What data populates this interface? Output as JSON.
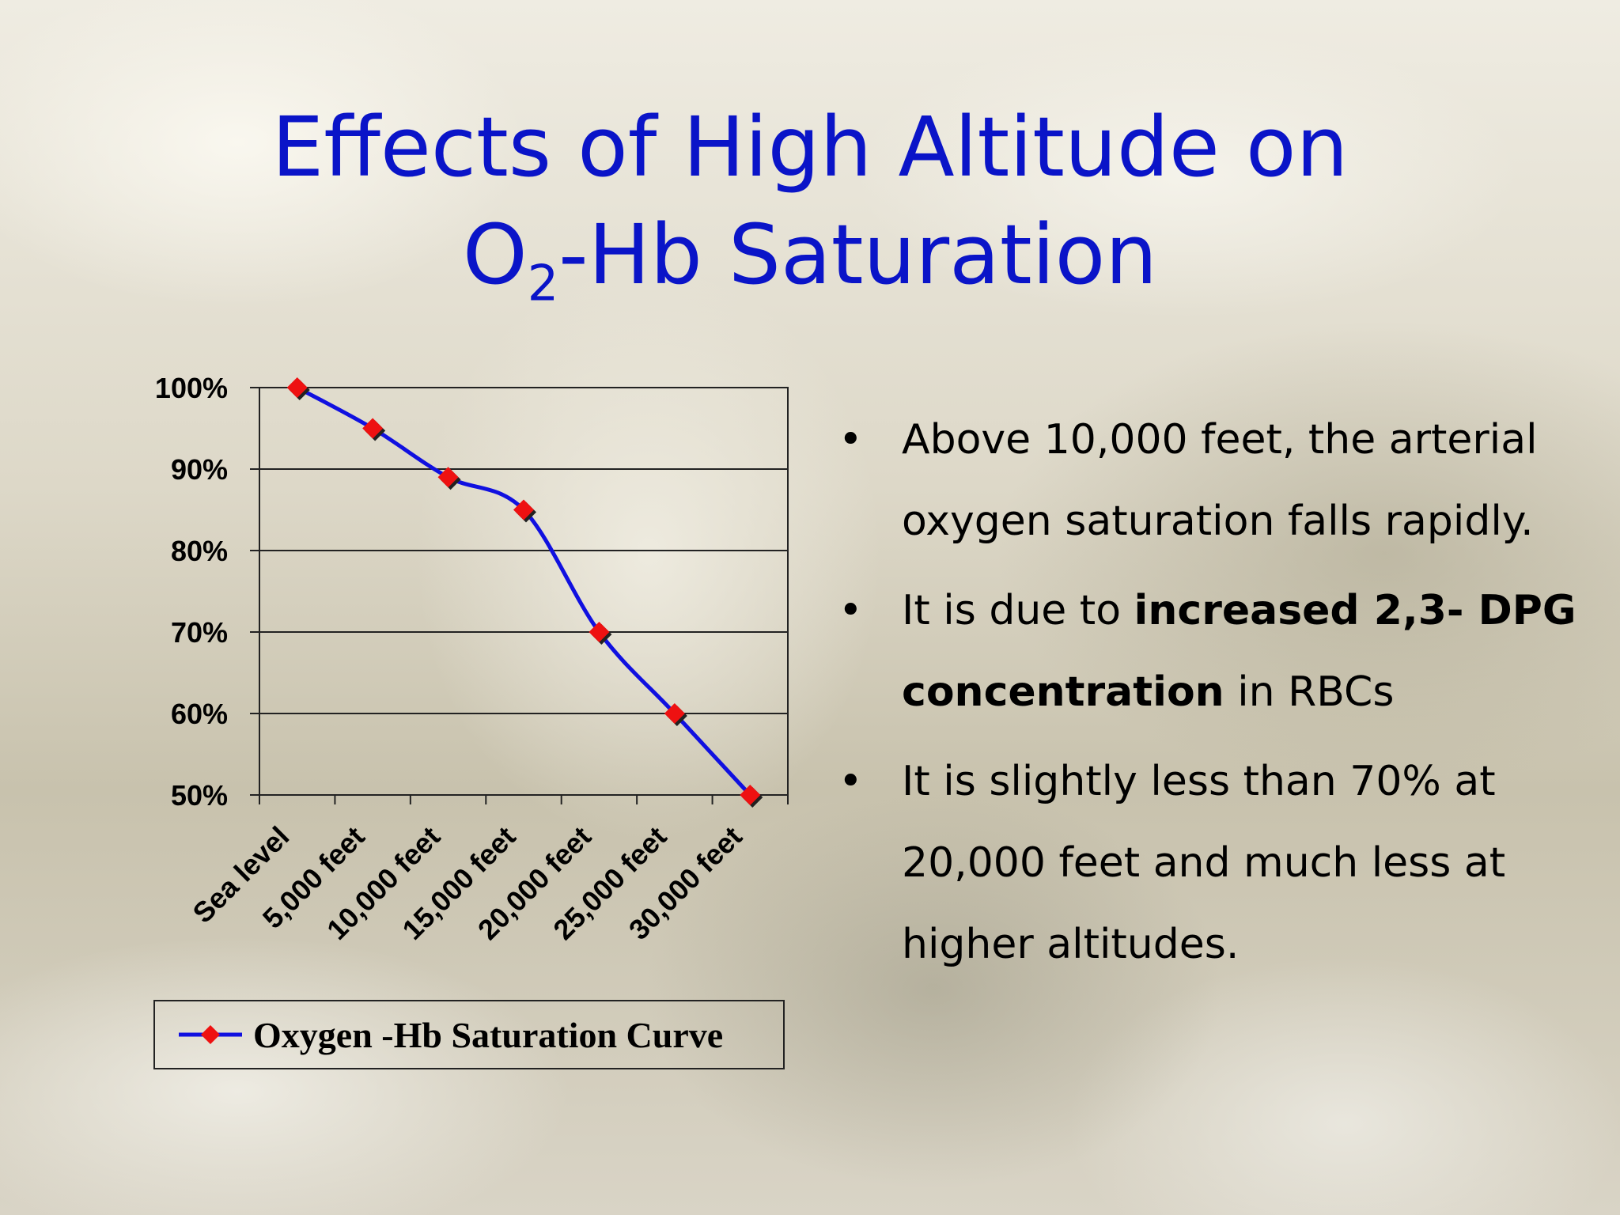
{
  "slide": {
    "title_line1": "Effects of High Altitude on",
    "title_o": "O",
    "title_sub": "2",
    "title_rest": "-Hb Saturation",
    "bullet_glyph": "•",
    "bullets": [
      {
        "text": "Above 10,000 feet, the arterial oxygen saturation falls rapidly."
      },
      {
        "pre": "It is due to ",
        "bold": "increased 2,3- DPG concentration",
        "post": " in RBCs"
      },
      {
        "text": "It is slightly less than 70% at 20,000 feet and much less at higher altitudes."
      }
    ]
  },
  "chart_data": {
    "type": "line",
    "categories": [
      "Sea level",
      "5,000 feet",
      "10,000 feet",
      "15,000 feet",
      "20,000 feet",
      "25,000 feet",
      "30,000 feet"
    ],
    "series": [
      {
        "name": "Oxygen -Hb Saturation Curve",
        "values": [
          100,
          95,
          89,
          85,
          70,
          60,
          50
        ]
      }
    ],
    "y_ticks": [
      "50%",
      "60%",
      "70%",
      "80%",
      "90%",
      "100%"
    ],
    "ylim": [
      50,
      100
    ],
    "y_step": 10,
    "grid": true,
    "legend_position": "bottom",
    "colors": {
      "line": "#1010e0",
      "marker": "#ee1111",
      "axis": "#222222",
      "grid": "#222222"
    }
  }
}
